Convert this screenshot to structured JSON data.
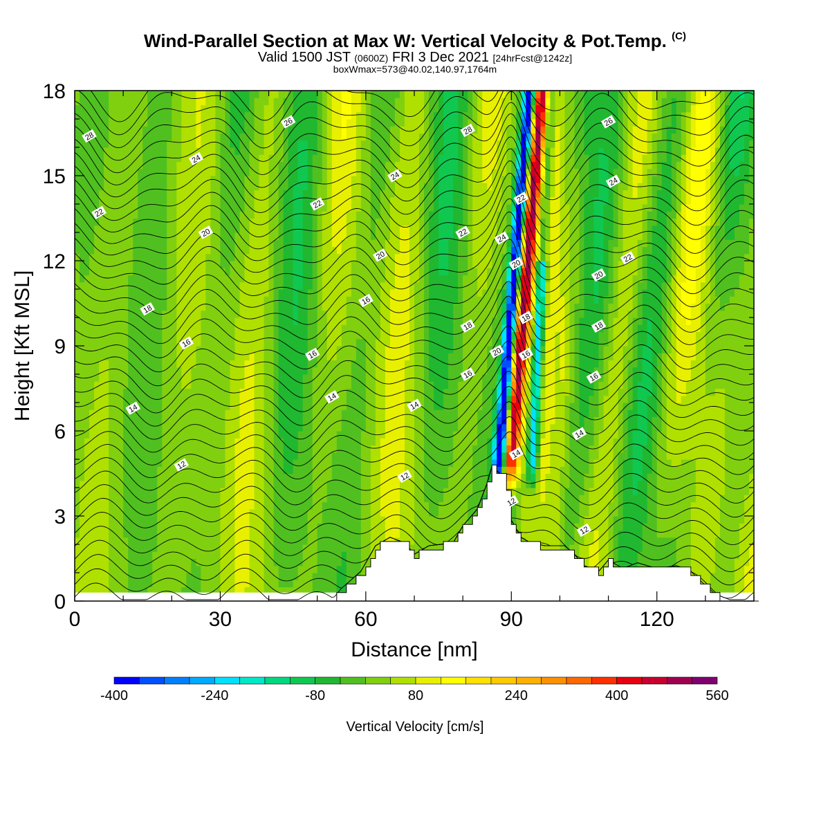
{
  "title": {
    "main": "Wind-Parallel Section at Max W: Vertical Velocity & Pot.Temp.",
    "copyright": "(C)",
    "valid_prefix": "Valid 1500 JST",
    "valid_utc": "(0600Z)",
    "valid_date": "FRI 3 Dec 2021",
    "forecast": "[24hrFcst@1242z]",
    "boxwmax": "boxWmax=573@40.02,140.97,1764m"
  },
  "chart_data": {
    "type": "heatmap",
    "xlabel": "Distance [nm]",
    "ylabel": "Height [Kft MSL]",
    "xlim": [
      0,
      140
    ],
    "ylim": [
      0,
      18
    ],
    "x_ticks": [
      "0",
      "30",
      "60",
      "90",
      "120"
    ],
    "y_ticks": [
      "0",
      "3",
      "6",
      "9",
      "12",
      "15",
      "18"
    ],
    "colorbar": {
      "label": "Vertical Velocity [cm/s]",
      "ticks": [
        "-400",
        "-240",
        "-80",
        "80",
        "240",
        "400",
        "560"
      ],
      "min": -400,
      "max": 560,
      "step": 40,
      "colors": [
        "#0000ff",
        "#0050ff",
        "#0080ff",
        "#00aaff",
        "#00e0ff",
        "#00e8c8",
        "#00d880",
        "#10c850",
        "#20b830",
        "#50c020",
        "#80d010",
        "#b0e000",
        "#e8f000",
        "#ffff00",
        "#ffe000",
        "#ffc800",
        "#ffb000",
        "#ff9000",
        "#ff6800",
        "#ff3000",
        "#e80010",
        "#c80030",
        "#a00050",
        "#800070"
      ]
    },
    "isentrope_labels": [
      {
        "x": 3,
        "z": 16.4,
        "text": "28"
      },
      {
        "x": 25,
        "z": 15.6,
        "text": "24"
      },
      {
        "x": 44,
        "z": 16.9,
        "text": "26"
      },
      {
        "x": 5,
        "z": 13.7,
        "text": "22"
      },
      {
        "x": 50,
        "z": 14.0,
        "text": "22"
      },
      {
        "x": 27,
        "z": 13.0,
        "text": "20"
      },
      {
        "x": 15,
        "z": 10.3,
        "text": "18"
      },
      {
        "x": 23,
        "z": 9.1,
        "text": "16"
      },
      {
        "x": 12,
        "z": 6.8,
        "text": "14"
      },
      {
        "x": 22,
        "z": 4.8,
        "text": "12"
      },
      {
        "x": 49,
        "z": 8.7,
        "text": "16"
      },
      {
        "x": 53,
        "z": 7.2,
        "text": "14"
      },
      {
        "x": 60,
        "z": 10.6,
        "text": "16"
      },
      {
        "x": 63,
        "z": 12.2,
        "text": "20"
      },
      {
        "x": 66,
        "z": 15.0,
        "text": "24"
      },
      {
        "x": 70,
        "z": 6.9,
        "text": "14"
      },
      {
        "x": 68,
        "z": 4.4,
        "text": "12"
      },
      {
        "x": 81,
        "z": 16.6,
        "text": "28"
      },
      {
        "x": 80,
        "z": 13.0,
        "text": "22"
      },
      {
        "x": 81,
        "z": 9.7,
        "text": "18"
      },
      {
        "x": 81,
        "z": 8.0,
        "text": "16"
      },
      {
        "x": 88,
        "z": 12.8,
        "text": "24"
      },
      {
        "x": 87,
        "z": 8.8,
        "text": "20"
      },
      {
        "x": 92,
        "z": 14.2,
        "text": "22"
      },
      {
        "x": 91,
        "z": 11.9,
        "text": "20"
      },
      {
        "x": 93,
        "z": 10.0,
        "text": "18"
      },
      {
        "x": 93,
        "z": 8.7,
        "text": "16"
      },
      {
        "x": 91,
        "z": 5.2,
        "text": "14"
      },
      {
        "x": 90,
        "z": 3.5,
        "text": "12"
      },
      {
        "x": 110,
        "z": 16.9,
        "text": "26"
      },
      {
        "x": 111,
        "z": 14.8,
        "text": "24"
      },
      {
        "x": 114,
        "z": 12.1,
        "text": "22"
      },
      {
        "x": 108,
        "z": 11.5,
        "text": "20"
      },
      {
        "x": 108,
        "z": 9.7,
        "text": "18"
      },
      {
        "x": 107,
        "z": 7.9,
        "text": "16"
      },
      {
        "x": 104,
        "z": 5.9,
        "text": "14"
      },
      {
        "x": 105,
        "z": 2.5,
        "text": "12"
      }
    ]
  }
}
